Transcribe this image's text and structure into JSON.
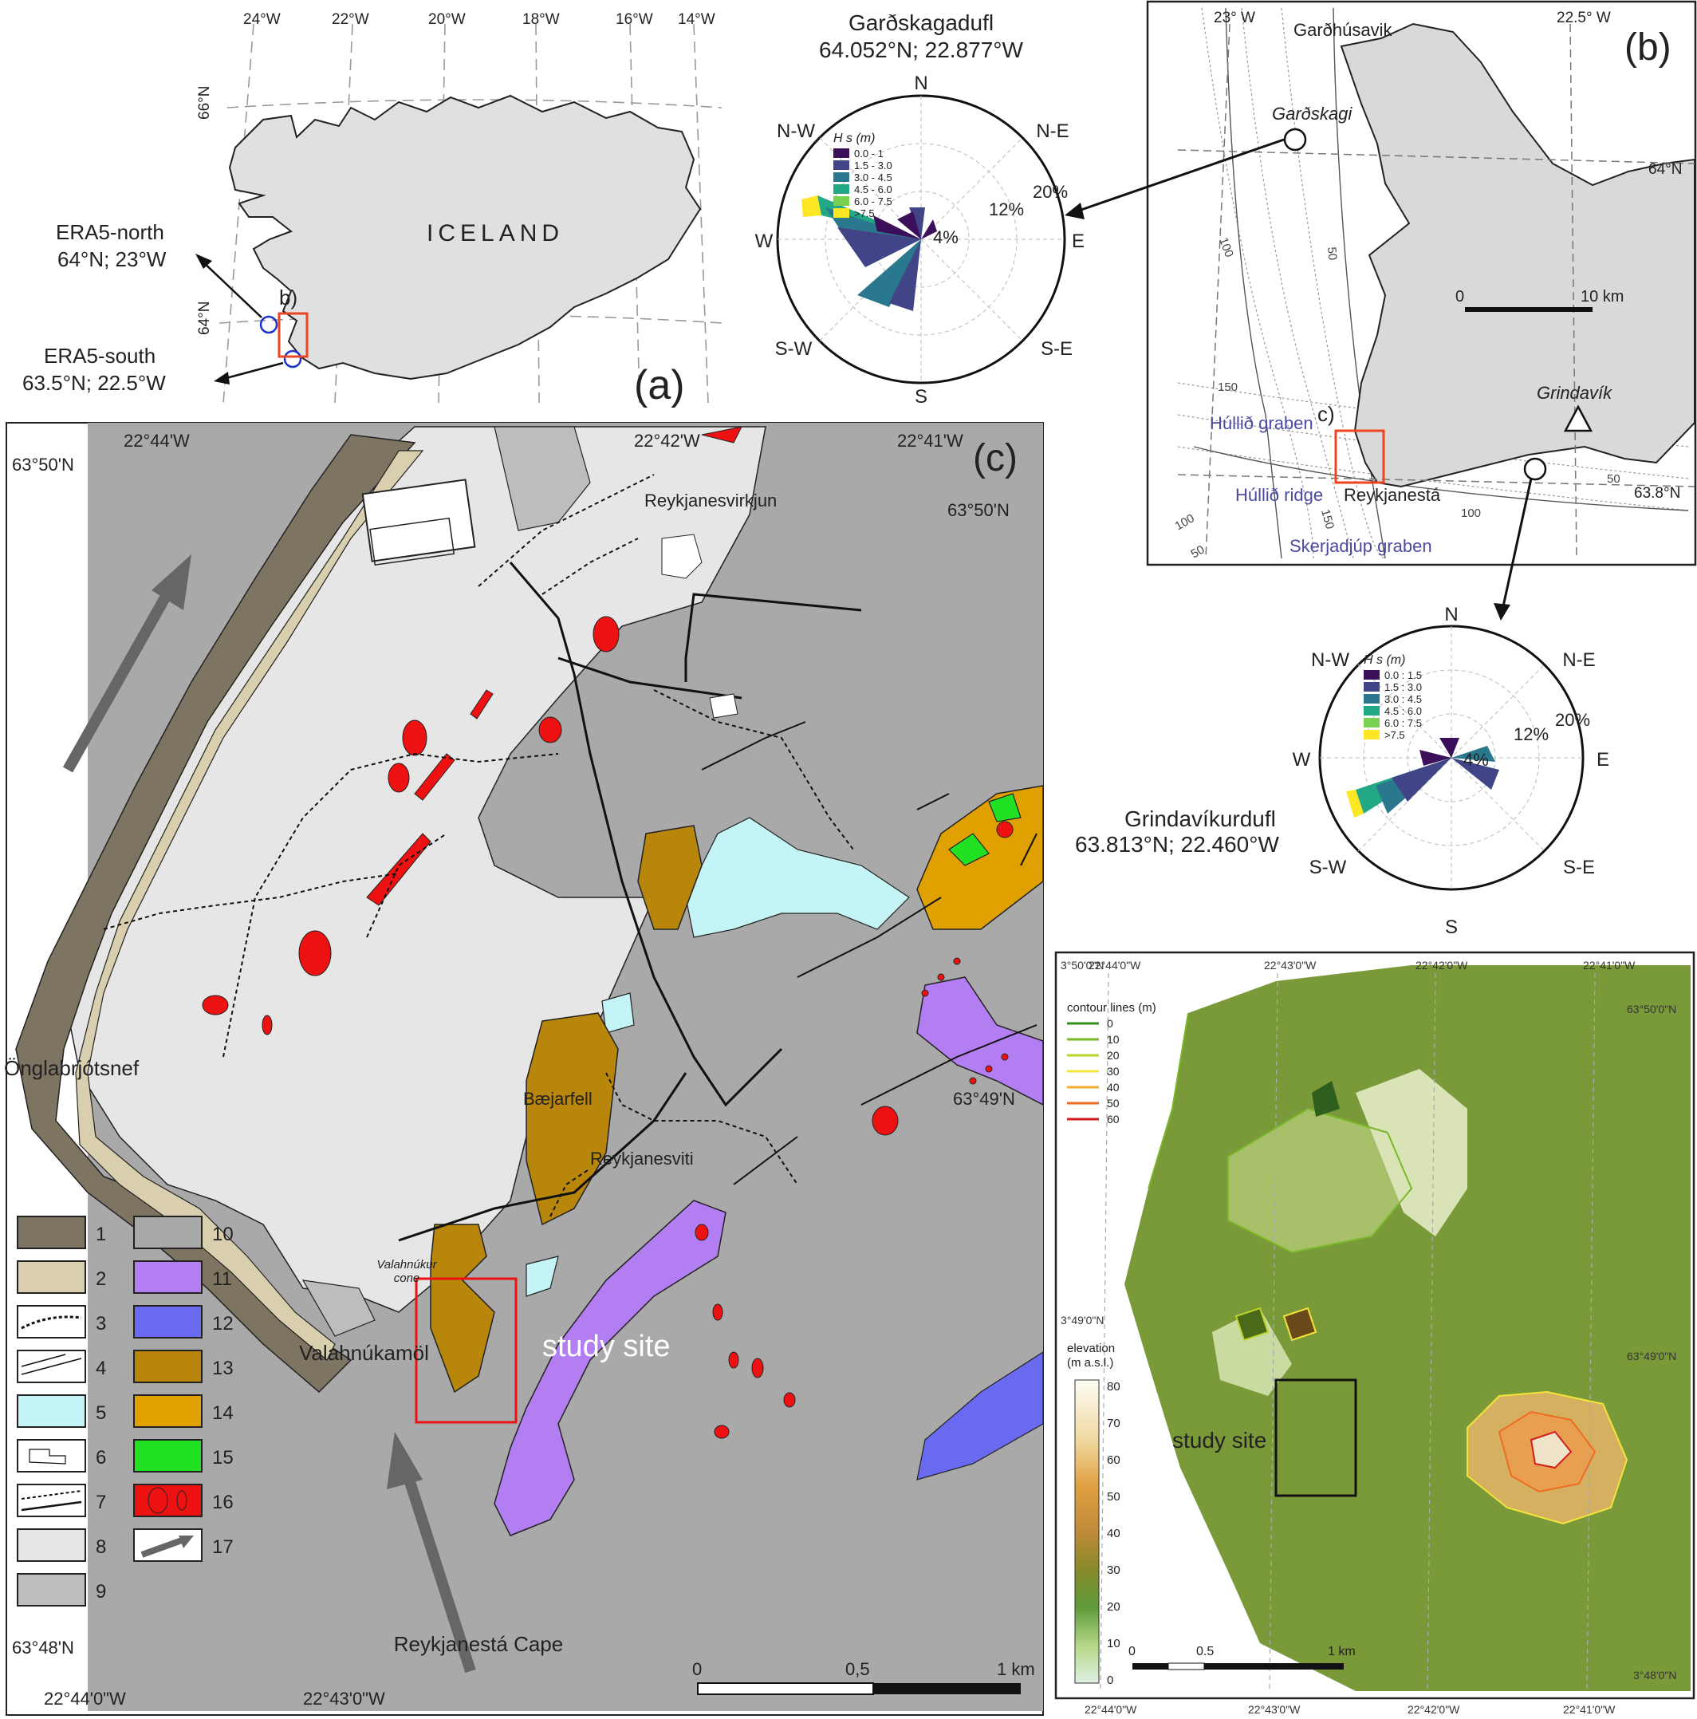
{
  "panel_a": {
    "letter": "(a)",
    "country": "ICELAND",
    "lon_labels": [
      "24°W",
      "22°W",
      "20°W",
      "18°W",
      "16°W",
      "14°W"
    ],
    "lat_labels": [
      "66°N",
      "64°N"
    ],
    "inset_label": "b)",
    "era_north": {
      "name": "ERA5-north",
      "coords": "64°N; 23°W"
    },
    "era_south": {
      "name": "ERA5-south",
      "coords": "63.5°N; 22.5°W"
    }
  },
  "rose_north": {
    "station": "Garðskagadufl",
    "coords": "64.052°N; 22.877°W",
    "directions": [
      "N",
      "N-E",
      "E",
      "S-E",
      "S",
      "S-W",
      "W",
      "N-W"
    ],
    "rings": [
      "4%",
      "12%",
      "20%"
    ],
    "legend_title": "H s (m)",
    "legend": [
      "0.0 - 1",
      "1.5 - 3.0",
      "3.0 - 4.5",
      "4.5 - 6.0",
      "6.0 - 7.5",
      ">7.5"
    ],
    "legend_colors": [
      "#3b0f5a",
      "#414487",
      "#2a788e",
      "#22a884",
      "#7ad151",
      "#fde725"
    ]
  },
  "rose_south": {
    "station": "Grindavíkurdufl",
    "coords": "63.813°N; 22.460°W",
    "directions": [
      "N",
      "N-E",
      "E",
      "S-E",
      "S",
      "S-W",
      "W",
      "N-W"
    ],
    "rings": [
      "4%",
      "12%",
      "20%"
    ],
    "legend_title": "H s (m)",
    "legend": [
      "0.0 : 1.5",
      "1.5 : 3.0",
      "3.0 : 4.5",
      "4.5 : 6.0",
      "6.0 : 7.5",
      ">7.5"
    ],
    "legend_colors": [
      "#3b0f5a",
      "#414487",
      "#2a788e",
      "#22a884",
      "#7ad151",
      "#fde725"
    ]
  },
  "panel_b": {
    "letter": "(b)",
    "lon_labels": [
      "23° W",
      "22.5° W"
    ],
    "lat_labels": [
      "64°N",
      "63.8°N"
    ],
    "places": [
      "Garðhúsavik",
      "Garðskagi",
      "Grindavík",
      "Reykjanestá"
    ],
    "features": [
      "Húllið graben",
      "Húllið ridge",
      "Skerjadjúp graben"
    ],
    "depths": [
      "100",
      "50",
      "150",
      "150",
      "100",
      "50",
      "100",
      "50"
    ],
    "scale": [
      "0",
      "10 km"
    ],
    "inset_label": "c)"
  },
  "panel_c": {
    "letter": "(c)",
    "lon_top": [
      "22°44'W",
      "22°42'W",
      "22°41'W"
    ],
    "lat_labels": [
      "63°50'N",
      "63°50'N",
      "63°49'N",
      "63°48'N"
    ],
    "lon_bottom": [
      "22°44'0\"W",
      "22°43'0\"W"
    ],
    "places": [
      "Reykjanesvirkjun",
      "Bæjarfell",
      "Reykjanesviti",
      "Önglabrjótsnef",
      "Valahnúkamöl",
      "Reykjanestá Cape"
    ],
    "cone": [
      "Valahnúkur",
      "cone"
    ],
    "study_site": "study site",
    "scale": [
      "0",
      "0,5",
      "1 km"
    ],
    "legend_numbers": [
      "1",
      "2",
      "3",
      "4",
      "5",
      "6",
      "7",
      "8",
      "9",
      "10",
      "11",
      "12",
      "13",
      "14",
      "15",
      "16",
      "17"
    ],
    "legend_colors": [
      "#7d7462",
      "#d9cfae",
      "#ffffff",
      "#ffffff",
      "#c4f4f6",
      "#ffffff",
      "#ffffff",
      "#e6e6e6",
      "#bdbdbd",
      "#a9a9a9",
      "#b37ef2",
      "#6a6af0",
      "#b8860b",
      "#e0a000",
      "#22e022",
      "#ee1111",
      "#ffffff"
    ]
  },
  "panel_d": {
    "lon_top": [
      "22°44'0\"W",
      "22°43'0\"W",
      "22°42'0\"W",
      "22°41'0\"W"
    ],
    "lat_left": [
      "3°50'0\"N",
      "3°49'0\"N"
    ],
    "lat_right": [
      "63°50'0\"N",
      "63°49'0\"N",
      "3°48'0\"N"
    ],
    "lon_bottom": [
      "22°44'0\"W",
      "22°43'0\"W",
      "22°42'0\"W",
      "22°41'0\"W"
    ],
    "contour_title": "contour lines (m)",
    "contours": [
      "0",
      "10",
      "20",
      "30",
      "40",
      "50",
      "60"
    ],
    "contour_colors": [
      "#2f8f1f",
      "#7ab829",
      "#bcd32a",
      "#f4e43a",
      "#f2ae32",
      "#ee6b22",
      "#d21d1d"
    ],
    "elev_title": "elevation",
    "elev_unit": "(m a.s.l.)",
    "elev_ticks": [
      "80",
      "70",
      "60",
      "50",
      "40",
      "30",
      "20",
      "10",
      "0"
    ],
    "study_site": "study site",
    "scale": [
      "0",
      "0.5",
      "1 km"
    ]
  }
}
